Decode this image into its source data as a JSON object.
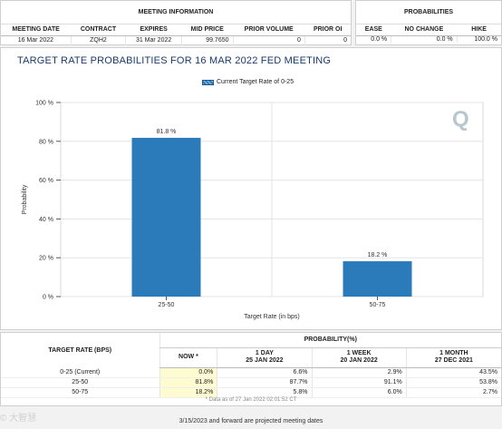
{
  "meeting_info": {
    "title": "MEETING INFORMATION",
    "columns": [
      "MEETING DATE",
      "CONTRACT",
      "EXPIRES",
      "MID PRICE",
      "PRIOR VOLUME",
      "PRIOR OI"
    ],
    "values": [
      "16 Mar 2022",
      "ZQH2",
      "31 Mar 2022",
      "99.7650",
      "0",
      "0"
    ]
  },
  "probabilities": {
    "title": "PROBABILITIES",
    "columns": [
      "EASE",
      "NO CHANGE",
      "HIKE"
    ],
    "values": [
      "0.0 %",
      "0.0 %",
      "100.0 %"
    ]
  },
  "chart": {
    "title": "TARGET RATE PROBABILITIES FOR 16 MAR 2022 FED MEETING",
    "legend": "Current Target Rate of 0-25",
    "logo_letter": "Q"
  },
  "chart_data": {
    "type": "bar",
    "categories": [
      "25-50",
      "50-75"
    ],
    "values": [
      81.8,
      18.2
    ],
    "data_labels": [
      "81.8 %",
      "18.2 %"
    ],
    "xlabel": "Target Rate (in bps)",
    "ylabel": "Probability",
    "ylim": [
      0,
      100
    ],
    "yticks": [
      "0 %",
      "20 %",
      "40 %",
      "60 %",
      "80 %",
      "100 %"
    ],
    "series": [
      {
        "name": "Current Target Rate of 0-25",
        "values": [
          81.8,
          18.2
        ]
      }
    ],
    "grid": true,
    "bar_color": "#2b7bba"
  },
  "bottom_table": {
    "left_header": "TARGET RATE (BPS)",
    "prob_header": "PROBABILITY(%)",
    "columns": [
      {
        "line1": "NOW *",
        "line2": ""
      },
      {
        "line1": "1 DAY",
        "line2": "25 JAN 2022"
      },
      {
        "line1": "1 WEEK",
        "line2": "20 JAN 2022"
      },
      {
        "line1": "1 MONTH",
        "line2": "27 DEC 2021"
      }
    ],
    "rows": [
      {
        "rate": "0-25 (Current)",
        "now": "0.0%",
        "day": "6.6%",
        "week": "2.9%",
        "month": "43.5%"
      },
      {
        "rate": "25-50",
        "now": "81.8%",
        "day": "87.7%",
        "week": "91.1%",
        "month": "53.8%"
      },
      {
        "rate": "50-75",
        "now": "18.2%",
        "day": "5.8%",
        "week": "6.0%",
        "month": "2.7%"
      }
    ],
    "footnote": "* Data as of 27 Jan 2022 02:01:52 CT"
  },
  "projection_note": "3/15/2023 and forward are projected meeting dates",
  "watermark": "© 大智慧"
}
